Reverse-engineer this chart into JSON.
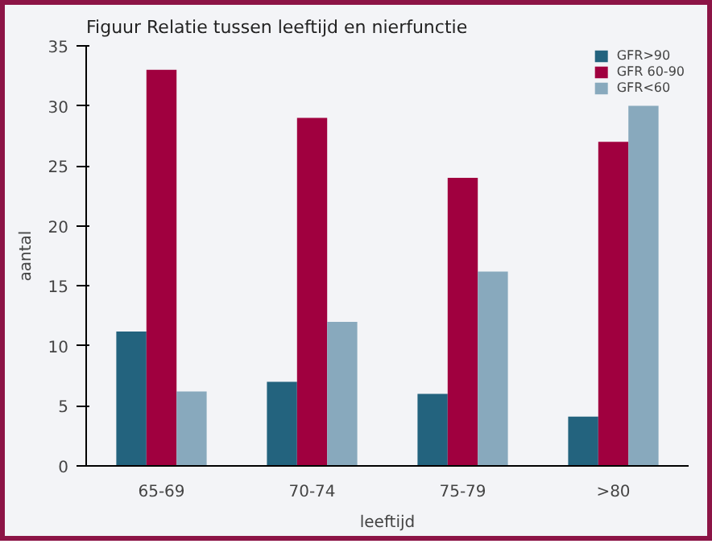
{
  "chart_data": {
    "type": "bar",
    "title": "Figuur Relatie tussen leeftijd en nierfunctie",
    "xlabel": "leeftijd",
    "ylabel": "aantal",
    "categories": [
      "65-69",
      "70-74",
      "75-79",
      ">80"
    ],
    "series": [
      {
        "name": "GFR>90",
        "color": "#23637e",
        "values": [
          11.2,
          7,
          6,
          4.1
        ]
      },
      {
        "name": "GFR 60-90",
        "color": "#a0003f",
        "values": [
          33,
          29,
          24,
          27
        ]
      },
      {
        "name": "GFR<60",
        "color": "#88a9bd",
        "values": [
          6.2,
          12,
          16.2,
          30
        ]
      }
    ],
    "ylim": [
      0,
      35
    ],
    "yticks": [
      0,
      5,
      10,
      15,
      20,
      25,
      30,
      35
    ],
    "grid": false,
    "legend": "top right"
  }
}
